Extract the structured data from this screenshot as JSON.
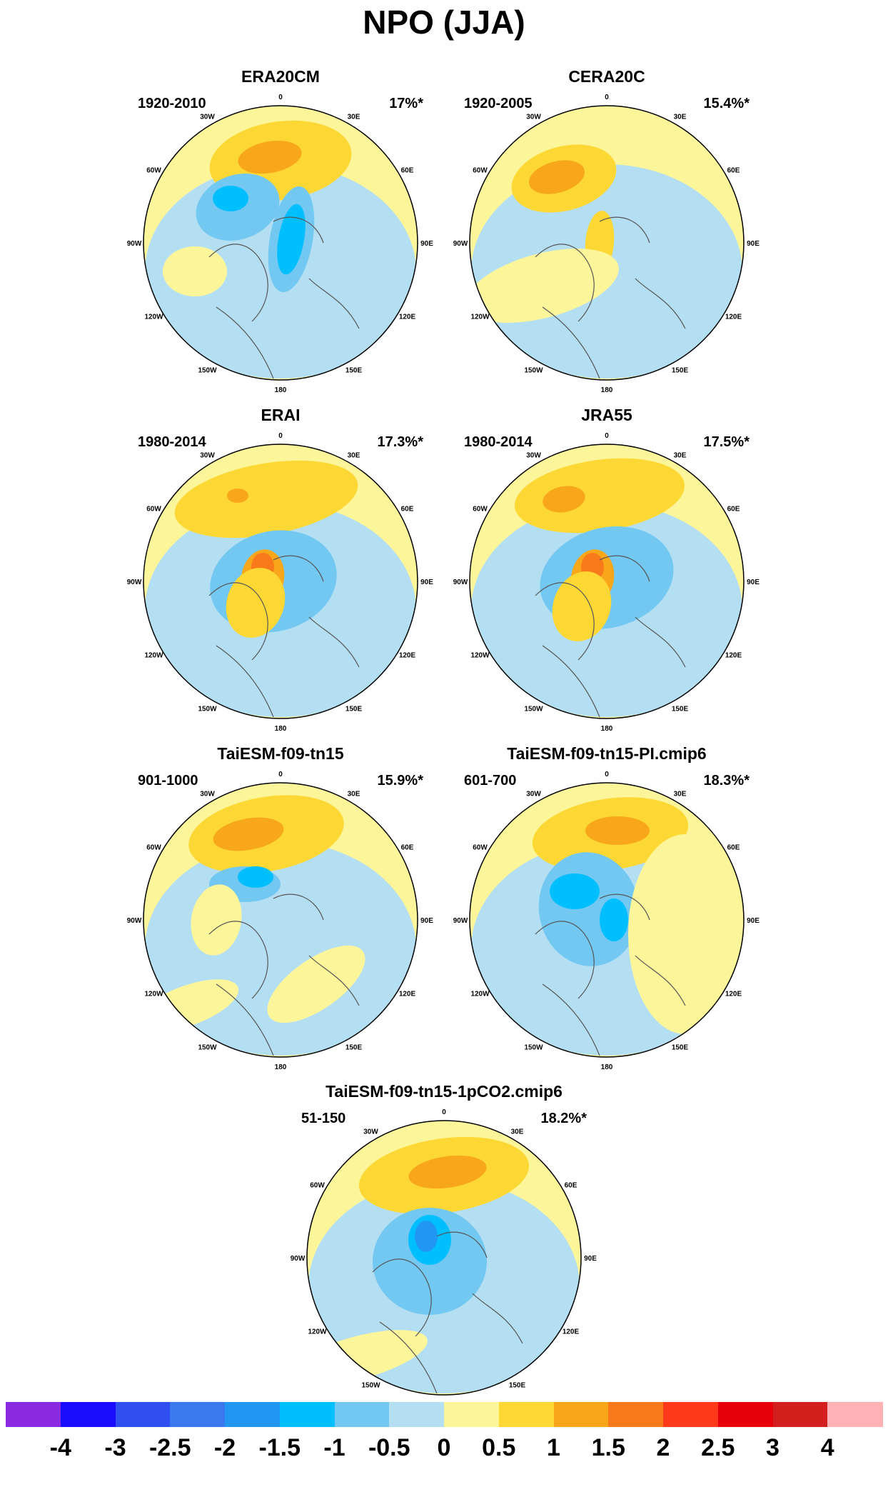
{
  "title": "NPO (JJA)",
  "longitude_labels": [
    "180",
    "150E",
    "120E",
    "90E",
    "60E",
    "30E",
    "0",
    "30W",
    "60W",
    "90W",
    "120W",
    "150W"
  ],
  "panels": [
    {
      "id": "era20cm",
      "title": "ERA20CM",
      "period": "1920-2010",
      "percent": "17%*"
    },
    {
      "id": "cera20c",
      "title": "CERA20C",
      "period": "1920-2005",
      "percent": "15.4%*"
    },
    {
      "id": "erai",
      "title": "ERAI",
      "period": "1980-2014",
      "percent": "17.3%*"
    },
    {
      "id": "jra55",
      "title": "JRA55",
      "period": "1980-2014",
      "percent": "17.5%*"
    },
    {
      "id": "taiesm",
      "title": "TaiESM-f09-tn15",
      "period": "901-1000",
      "percent": "15.9%*"
    },
    {
      "id": "taiesm-pi",
      "title": "TaiESM-f09-tn15-PI.cmip6",
      "period": "601-700",
      "percent": "18.3%*"
    },
    {
      "id": "taiesm-co2",
      "title": "TaiESM-f09-tn15-1pCO2.cmip6",
      "period": "51-150",
      "percent": "18.2%*"
    }
  ],
  "colorbar": {
    "colors": [
      "#8a2be2",
      "#1a0dff",
      "#2f4ff0",
      "#3a78ee",
      "#2196f3",
      "#00bfff",
      "#73c8f2",
      "#b4dff2",
      "#fdf59a",
      "#fdd835",
      "#f9a71a",
      "#f97a1a",
      "#ff3a1a",
      "#e8000b",
      "#d41f1f",
      "#ffb1b4"
    ],
    "labels": [
      "-4",
      "-3",
      "-2.5",
      "-2",
      "-1.5",
      "-1",
      "-0.5",
      "0",
      "0.5",
      "1",
      "1.5",
      "2",
      "2.5",
      "3",
      "4"
    ]
  }
}
